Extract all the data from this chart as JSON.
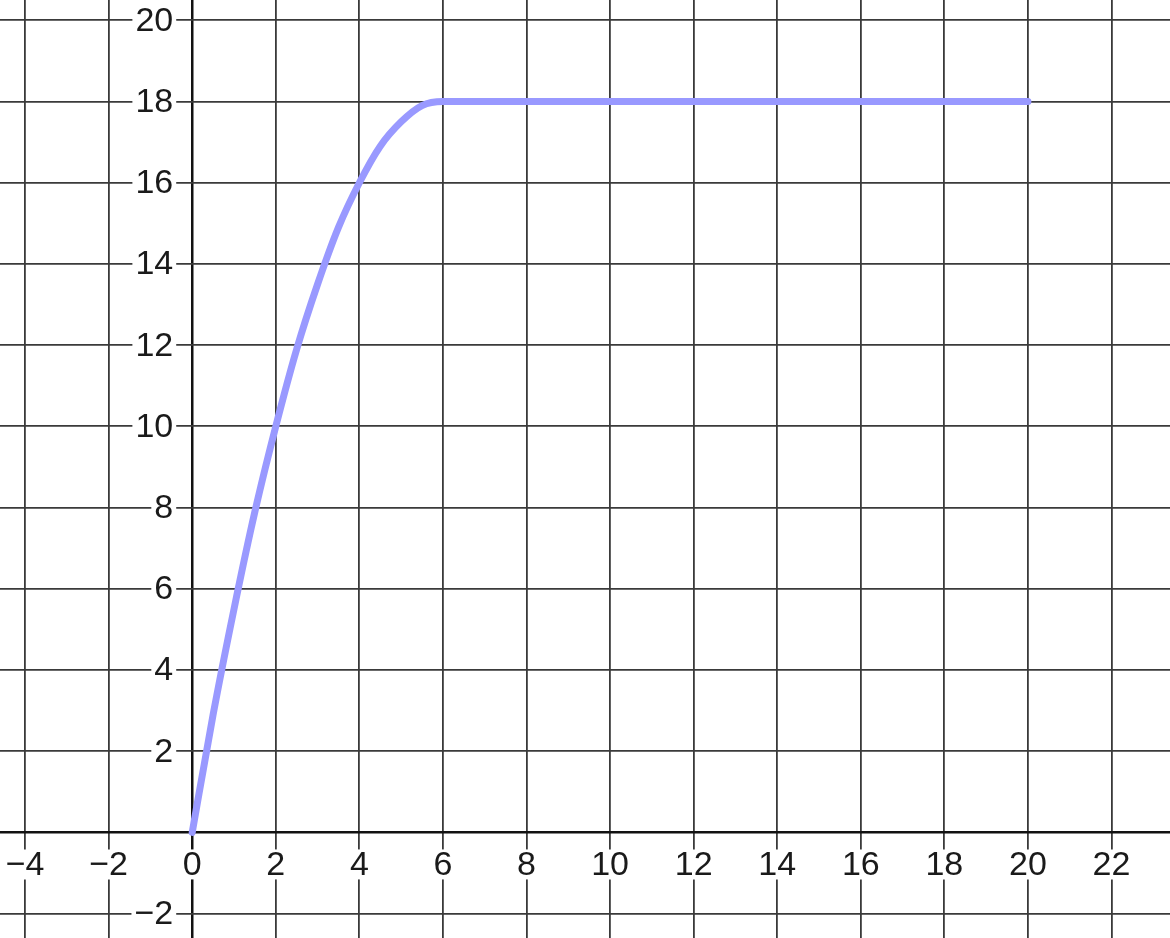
{
  "chart_data": {
    "type": "line",
    "x": [
      0,
      0.5,
      1,
      1.5,
      2,
      2.5,
      3,
      3.5,
      4,
      4.5,
      5,
      5.5,
      6,
      20
    ],
    "values": [
      0,
      2.9,
      5.5,
      7.9,
      10,
      11.9,
      13.5,
      14.9,
      16,
      16.9,
      17.5,
      17.9,
      18,
      18
    ],
    "color": "#9999ff",
    "xlim": [
      -4.6,
      23.4
    ],
    "ylim": [
      -2.6,
      20.5
    ],
    "xticks": [
      {
        "value": -4,
        "label": "−4"
      },
      {
        "value": -2,
        "label": "−2"
      },
      0,
      2,
      4,
      6,
      8,
      10,
      12,
      14,
      16,
      18,
      20,
      22
    ],
    "yticks": [
      {
        "value": -2,
        "label": "−2"
      },
      {
        "value": 0,
        "label": null
      },
      2,
      4,
      6,
      8,
      10,
      12,
      14,
      16,
      18,
      20
    ],
    "grid": true,
    "legend": false,
    "marker": "none",
    "line_style": "solid"
  }
}
